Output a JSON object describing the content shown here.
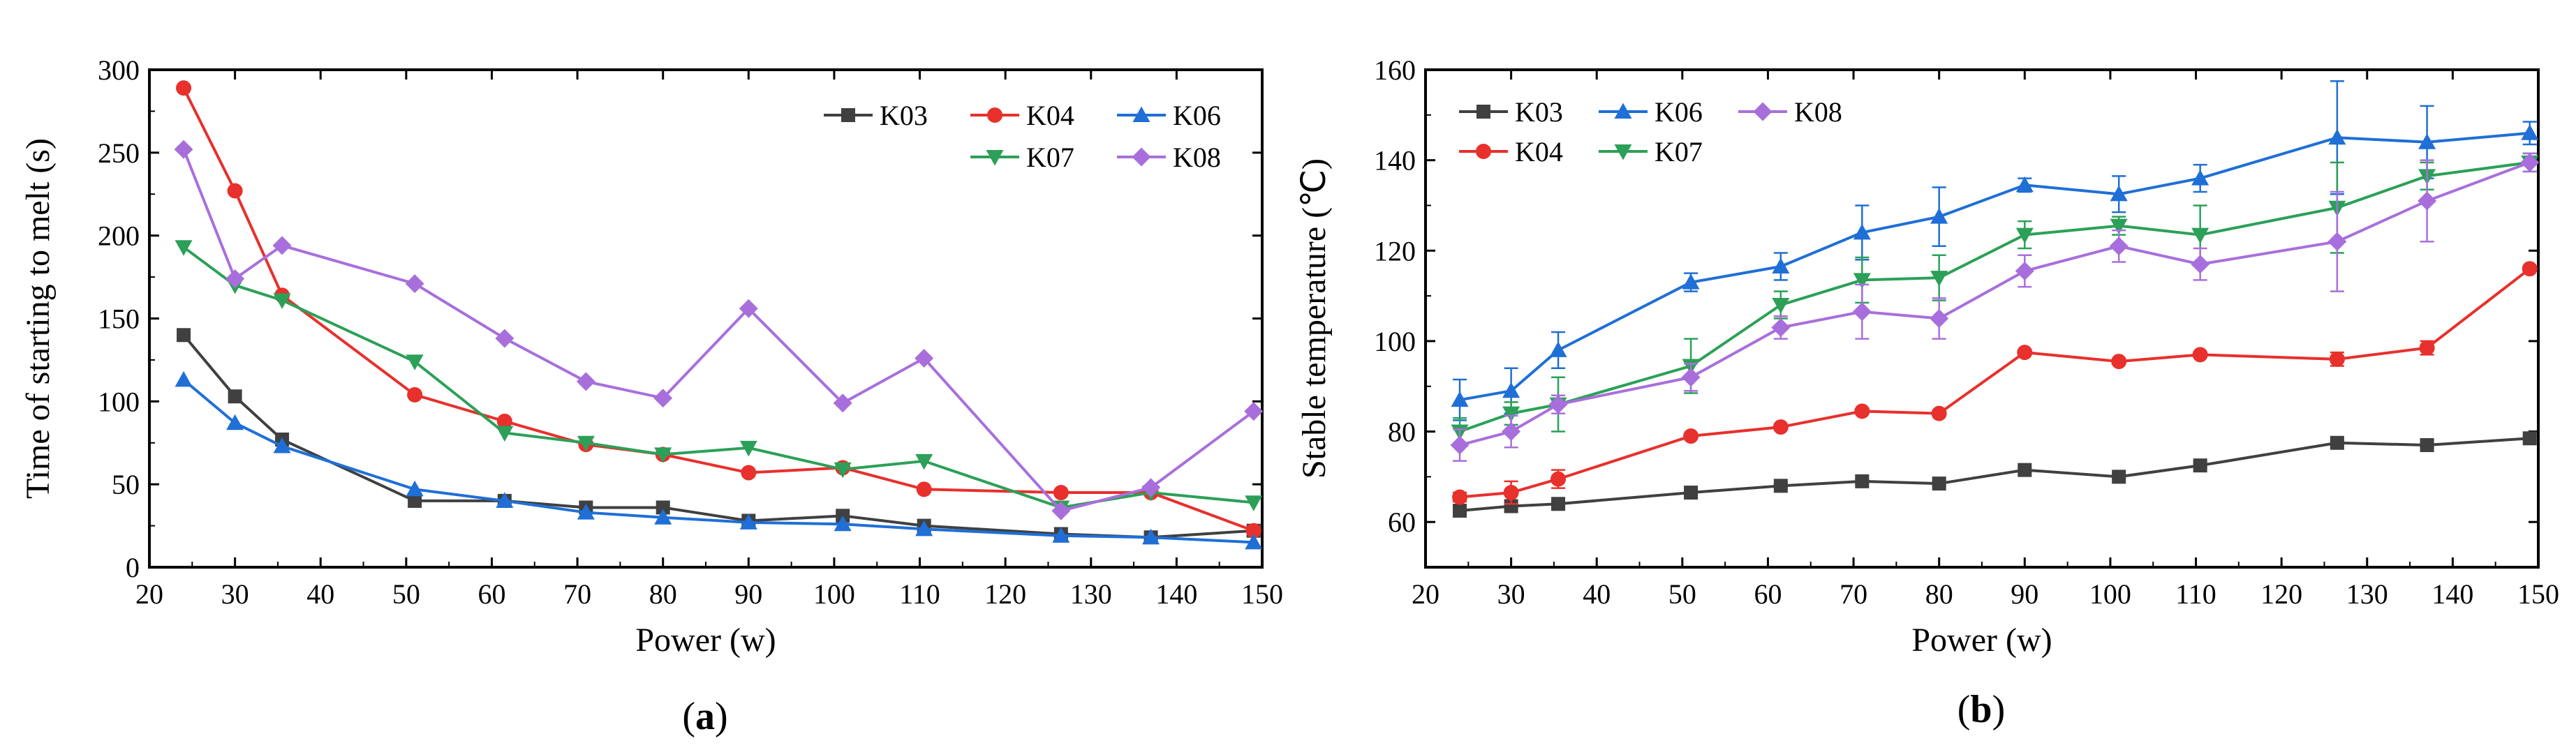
{
  "chart_data": [
    {
      "panel": "a",
      "type": "line",
      "title": "",
      "xlabel": "Power (w)",
      "ylabel": "Time of starting to melt (s)",
      "xlim": [
        20,
        150
      ],
      "ylim": [
        0,
        300
      ],
      "xticks": [
        20,
        30,
        40,
        50,
        60,
        70,
        80,
        90,
        100,
        110,
        120,
        130,
        140,
        150
      ],
      "yticks": [
        0,
        50,
        100,
        150,
        200,
        250,
        300
      ],
      "legend": "top-right",
      "x": [
        24,
        30,
        35.5,
        51,
        61.5,
        71,
        80,
        90,
        101,
        110.5,
        126.5,
        137,
        149
      ],
      "series": [
        {
          "name": "K03",
          "color": "#404040",
          "marker": "square",
          "values": [
            140,
            103,
            77,
            40,
            40,
            36,
            36,
            28,
            31,
            25,
            20,
            18,
            22
          ]
        },
        {
          "name": "K04",
          "color": "#e8302c",
          "marker": "circle",
          "values": [
            289,
            227,
            164,
            104,
            88,
            74,
            68,
            57,
            60,
            47,
            45,
            45,
            22
          ]
        },
        {
          "name": "K06",
          "color": "#1f6fd6",
          "marker": "triangle-up",
          "values": [
            113,
            87,
            73,
            47,
            40,
            33,
            30,
            27,
            26,
            23,
            19,
            18,
            15
          ]
        },
        {
          "name": "K07",
          "color": "#2ca058",
          "marker": "triangle-down",
          "values": [
            193,
            170,
            161,
            124,
            81,
            75,
            68,
            72,
            59,
            64,
            36,
            45,
            39
          ]
        },
        {
          "name": "K08",
          "color": "#a86fdc",
          "marker": "diamond",
          "values": [
            252,
            174,
            194,
            171,
            138,
            112,
            102,
            156,
            99,
            126,
            34,
            48,
            94
          ]
        }
      ],
      "panel_label": "(a)"
    },
    {
      "panel": "b",
      "type": "line",
      "title": "",
      "xlabel": "Power (w)",
      "ylabel": "Stable temperature (℃)",
      "xlim": [
        20,
        150
      ],
      "ylim": [
        50,
        160
      ],
      "xticks": [
        20,
        30,
        40,
        50,
        60,
        70,
        80,
        90,
        100,
        110,
        120,
        130,
        140,
        150
      ],
      "yticks": [
        60,
        80,
        100,
        120,
        140,
        160
      ],
      "legend": "top-left",
      "x": [
        24,
        30,
        35.5,
        51,
        61.5,
        71,
        80,
        90,
        101,
        110.5,
        126.5,
        137,
        149
      ],
      "series": [
        {
          "name": "K03",
          "color": "#404040",
          "marker": "square",
          "values": [
            62.5,
            63.5,
            64,
            66.5,
            68,
            69,
            68.5,
            71.5,
            70,
            72.5,
            77.5,
            77,
            78.5
          ],
          "errors": [
            0.5,
            0.5,
            0.5,
            0.5,
            0.5,
            0.5,
            0.5,
            0.5,
            0.5,
            0.5,
            0.5,
            0.5,
            0.5
          ]
        },
        {
          "name": "K04",
          "color": "#e8302c",
          "marker": "circle",
          "values": [
            65.5,
            66.5,
            69.5,
            79,
            81,
            84.5,
            84,
            97.5,
            95.5,
            97,
            96,
            98.5,
            116
          ],
          "errors": [
            1,
            2.5,
            2,
            0.5,
            0.5,
            0.5,
            0.5,
            0.5,
            0.5,
            0.5,
            1.5,
            1.5,
            0.5
          ]
        },
        {
          "name": "K06",
          "color": "#1f6fd6",
          "marker": "triangle-up",
          "values": [
            87,
            89,
            98,
            113,
            116.5,
            124,
            127.5,
            134.5,
            132.5,
            136,
            145,
            144,
            146
          ],
          "errors": [
            4.5,
            5,
            4,
            2,
            3,
            6,
            6.5,
            1.5,
            4,
            3,
            12.5,
            8,
            2.5
          ]
        },
        {
          "name": "K07",
          "color": "#2ca058",
          "marker": "triangle-down",
          "values": [
            80,
            84,
            86,
            94.5,
            108,
            113.5,
            114,
            123.5,
            125.5,
            123.5,
            129.5,
            136.5,
            139.5
          ],
          "errors": [
            3,
            2.5,
            6,
            6,
            3,
            5,
            5,
            3,
            2,
            6.5,
            10,
            3,
            2
          ]
        },
        {
          "name": "K08",
          "color": "#a86fdc",
          "marker": "diamond",
          "values": [
            77,
            80,
            86,
            92,
            103,
            106.5,
            105,
            115.5,
            121,
            117,
            122,
            131,
            139.5
          ],
          "errors": [
            3.5,
            3.5,
            2,
            3,
            2.5,
            6,
            4.5,
            3.5,
            3.5,
            3.5,
            11,
            9,
            2
          ]
        }
      ],
      "panel_label": "(b)"
    }
  ]
}
